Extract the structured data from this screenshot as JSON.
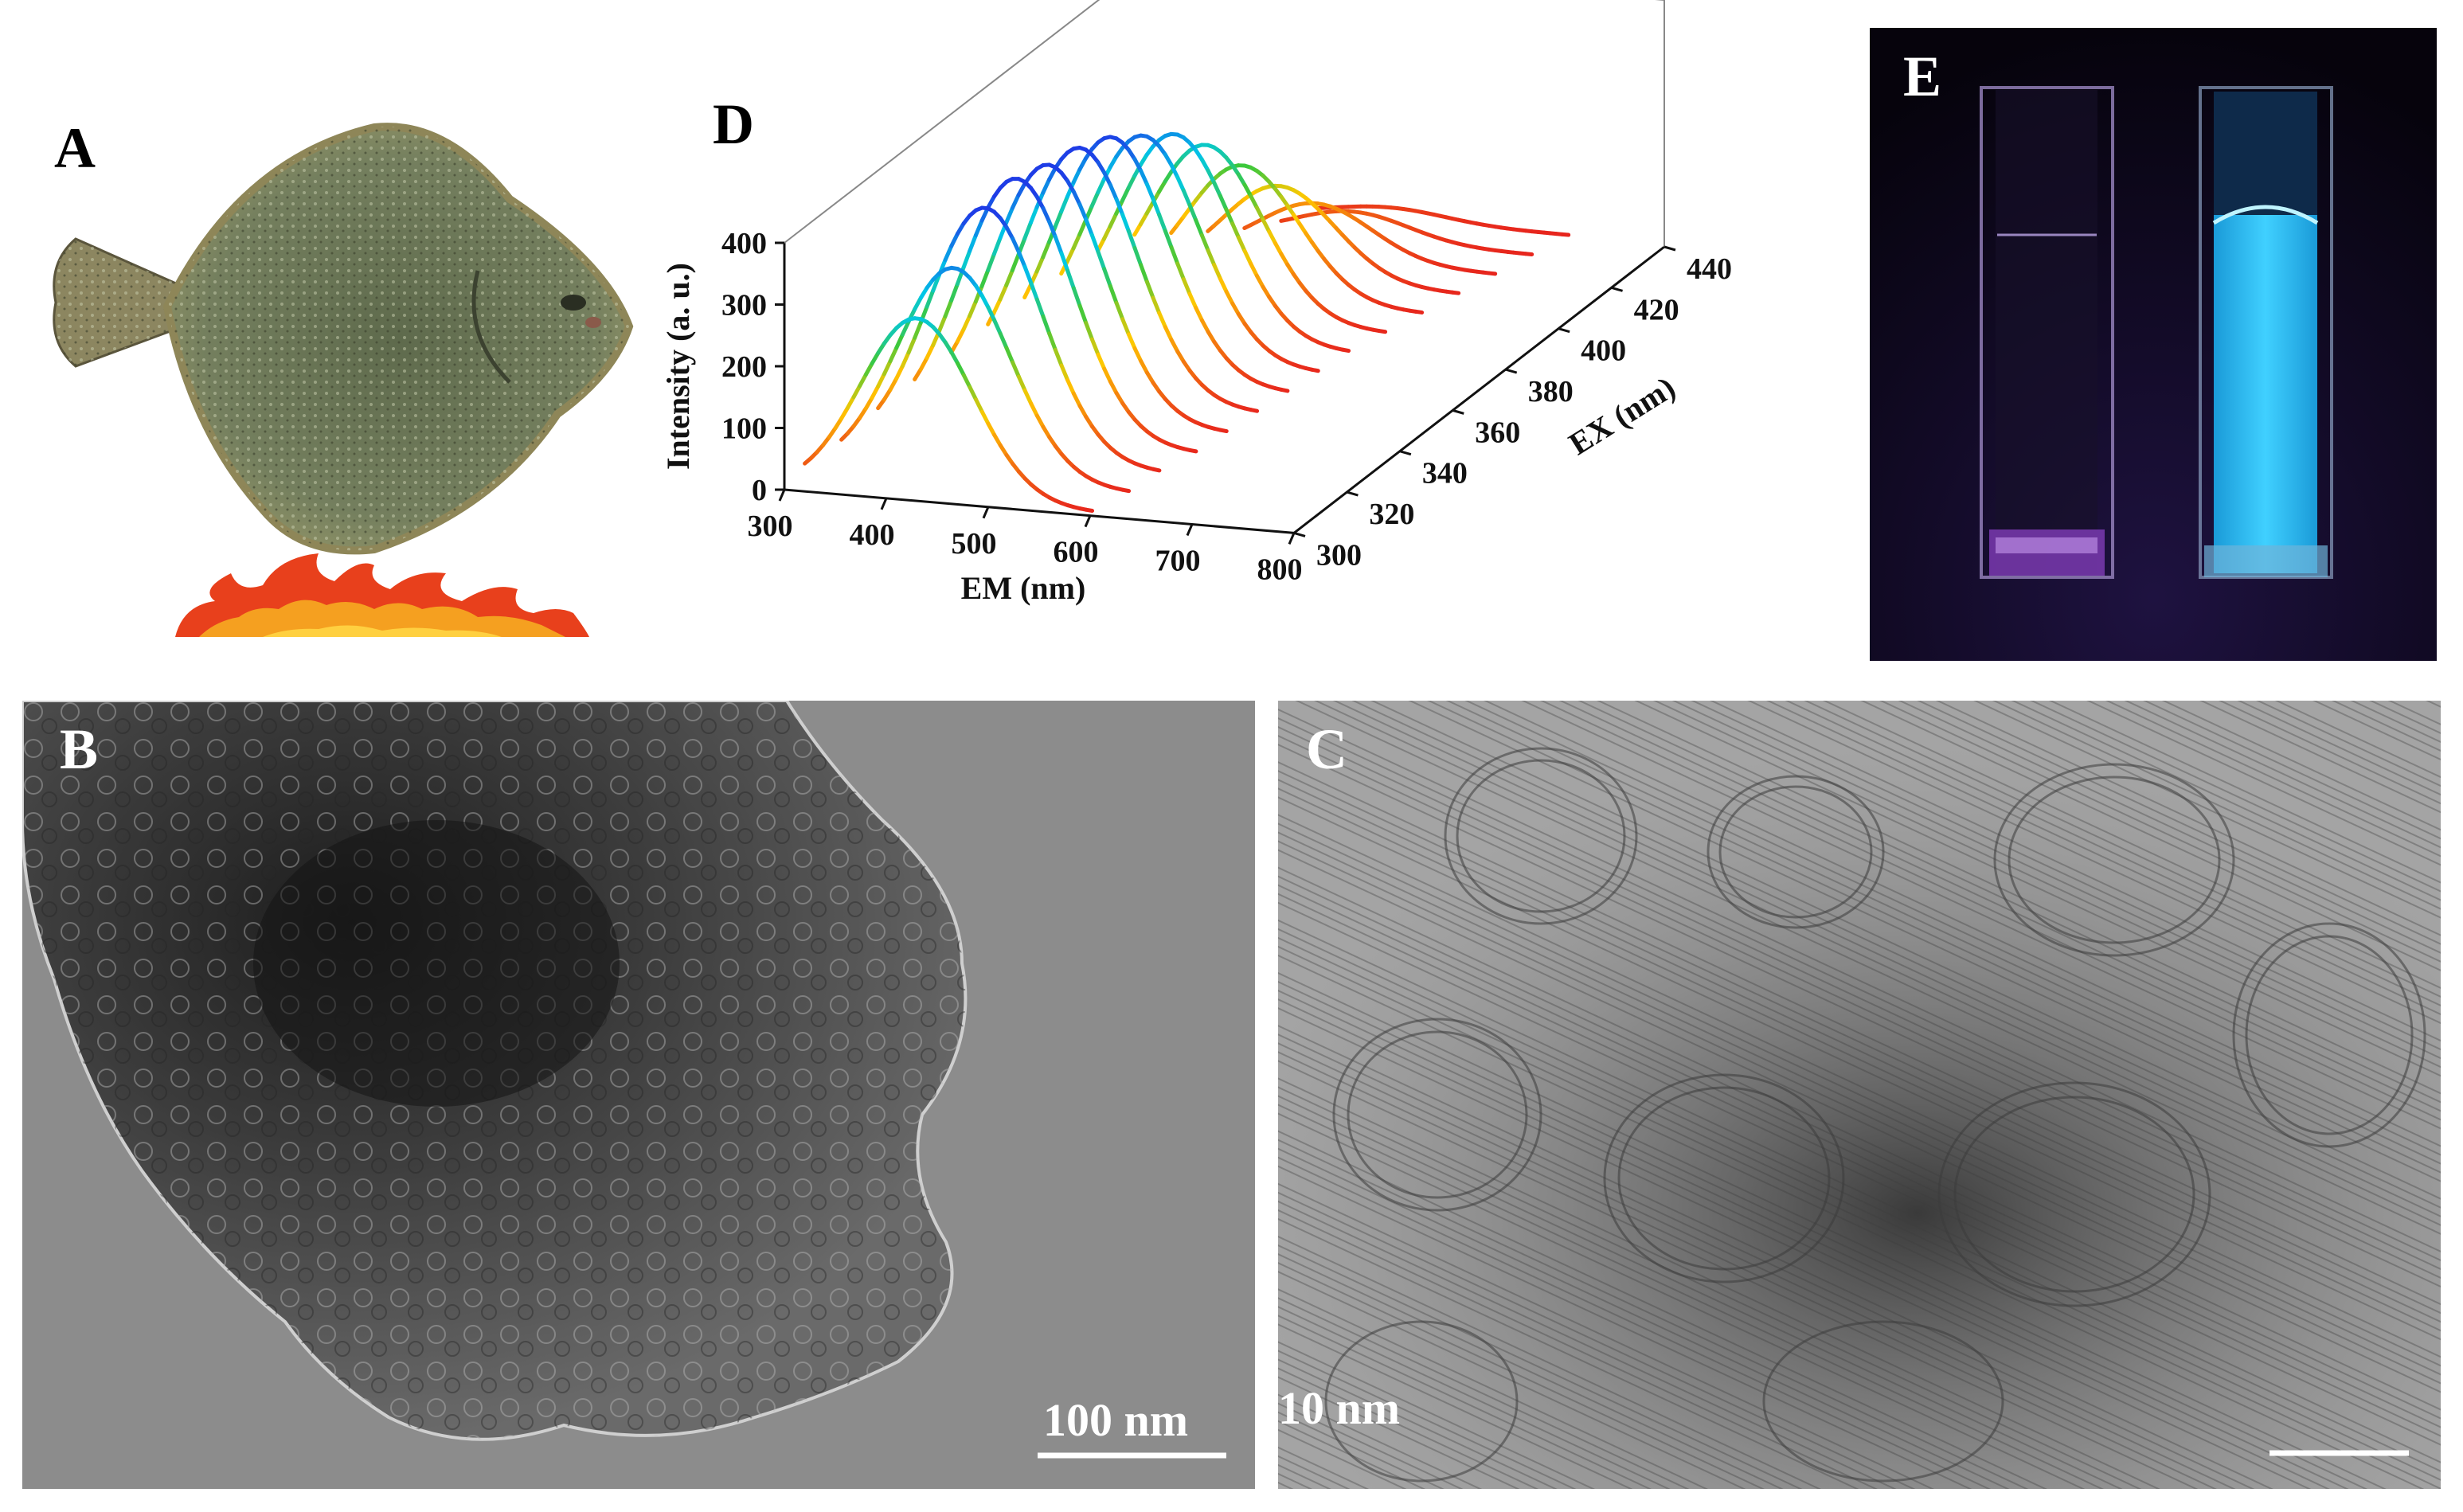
{
  "panels": {
    "A": {
      "label": "A"
    },
    "B": {
      "label": "B",
      "scale_bar": "100 nm"
    },
    "C": {
      "label": "C",
      "scale_bar": "10 nm"
    },
    "D": {
      "label": "D"
    },
    "E": {
      "label": "E"
    }
  },
  "colors": {
    "tem_bg_B": "#8a8a8a",
    "tem_bg_C": "#9a9a9a",
    "photo_bg_E": "#0a0612",
    "fluorescence": "#38c8ff",
    "fish_body": "#6e7a5a",
    "flame": "#e83a1a"
  },
  "icons": {
    "A": "flounder-fish-over-flame-icon",
    "E": "cuvettes-under-uv-light"
  },
  "chart_data": {
    "type": "line",
    "subtype": "3d-waterfall",
    "xlabel": "EM (nm)",
    "ylabel": "Intensity (a. u.)",
    "zlabel": "EX (nm)",
    "x_ticks": [
      "300",
      "400",
      "500",
      "600",
      "700",
      "800"
    ],
    "y_ticks": [
      "0",
      "100",
      "200",
      "300",
      "400"
    ],
    "z_ticks": [
      "300",
      "320",
      "340",
      "360",
      "380",
      "400",
      "420",
      "440"
    ],
    "xlim": [
      300,
      800
    ],
    "ylim": [
      0,
      400
    ],
    "zlim": [
      300,
      440
    ],
    "color_scale": "rainbow by intensity (red low, blue high)",
    "series": [
      {
        "ex": 300,
        "peak_em": 430,
        "peak_intensity": 290
      },
      {
        "ex": 310,
        "peak_em": 440,
        "peak_intensity": 340
      },
      {
        "ex": 320,
        "peak_em": 445,
        "peak_intensity": 405
      },
      {
        "ex": 330,
        "peak_em": 450,
        "peak_intensity": 420
      },
      {
        "ex": 340,
        "peak_em": 455,
        "peak_intensity": 410
      },
      {
        "ex": 350,
        "peak_em": 460,
        "peak_intensity": 405
      },
      {
        "ex": 360,
        "peak_em": 465,
        "peak_intensity": 390
      },
      {
        "ex": 370,
        "peak_em": 470,
        "peak_intensity": 360
      },
      {
        "ex": 380,
        "peak_em": 475,
        "peak_intensity": 330
      },
      {
        "ex": 390,
        "peak_em": 480,
        "peak_intensity": 280
      },
      {
        "ex": 400,
        "peak_em": 490,
        "peak_intensity": 215
      },
      {
        "ex": 410,
        "peak_em": 500,
        "peak_intensity": 150
      },
      {
        "ex": 420,
        "peak_em": 510,
        "peak_intensity": 90
      },
      {
        "ex": 430,
        "peak_em": 520,
        "peak_intensity": 45
      },
      {
        "ex": 440,
        "peak_em": 530,
        "peak_intensity": 20
      }
    ]
  }
}
